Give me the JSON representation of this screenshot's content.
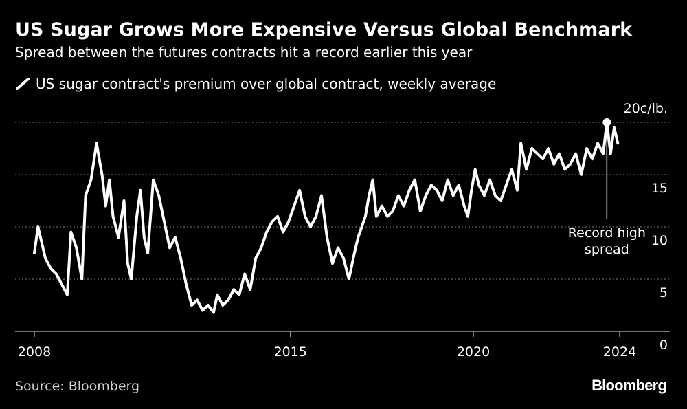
{
  "header": {
    "title": "US Sugar Grows More Expensive Versus Global Benchmark",
    "subtitle": "Spread between the futures contracts hit a record earlier this year"
  },
  "legend": {
    "label": "US sugar contract's premium over global contract, weekly average",
    "color": "#ffffff"
  },
  "footer": {
    "source": "Source: Bloomberg",
    "brand": "Bloomberg"
  },
  "colors": {
    "background": "#000000",
    "line": "#ffffff",
    "grid": "#666666",
    "axis": "#9a9a9a"
  },
  "chart_data": {
    "type": "line",
    "title": "US Sugar Grows More Expensive Versus Global Benchmark",
    "subtitle": "Spread between the futures contracts hit a record earlier this year",
    "ylabel": "c/lb.",
    "unit_label": "20c/lb.",
    "ylim": [
      0,
      20
    ],
    "xlim": [
      2008,
      2025.8
    ],
    "yticks": [
      {
        "value": 0,
        "label": "0"
      },
      {
        "value": 5,
        "label": "5"
      },
      {
        "value": 10,
        "label": "10"
      },
      {
        "value": 15,
        "label": "15"
      },
      {
        "value": 20,
        "label": "20c/lb."
      }
    ],
    "xticks": [
      {
        "value": 2008,
        "label": "2008"
      },
      {
        "value": 2015,
        "label": "2015"
      },
      {
        "value": 2020,
        "label": "2020"
      },
      {
        "value": 2024,
        "label": "2024"
      }
    ],
    "grid": true,
    "annotation": {
      "label_line1": "Record high",
      "label_line2": "spread",
      "x": 2023.65,
      "y": 20
    },
    "series": [
      {
        "name": "US sugar contract's premium over global contract, weekly average",
        "x": [
          2008.0,
          2008.1,
          2008.2,
          2008.3,
          2008.45,
          2008.6,
          2008.75,
          2008.9,
          2009.0,
          2009.15,
          2009.3,
          2009.4,
          2009.55,
          2009.7,
          2009.85,
          2009.95,
          2010.05,
          2010.15,
          2010.3,
          2010.45,
          2010.55,
          2010.65,
          2010.8,
          2010.9,
          2011.0,
          2011.1,
          2011.25,
          2011.4,
          2011.55,
          2011.7,
          2011.85,
          2012.0,
          2012.15,
          2012.3,
          2012.45,
          2012.6,
          2012.75,
          2012.9,
          2013.0,
          2013.15,
          2013.3,
          2013.45,
          2013.6,
          2013.75,
          2013.9,
          2014.05,
          2014.2,
          2014.35,
          2014.5,
          2014.65,
          2014.8,
          2014.95,
          2015.1,
          2015.25,
          2015.4,
          2015.55,
          2015.7,
          2015.85,
          2016.0,
          2016.15,
          2016.3,
          2016.45,
          2016.6,
          2016.75,
          2016.85,
          2016.95,
          2017.05,
          2017.15,
          2017.25,
          2017.35,
          2017.5,
          2017.65,
          2017.8,
          2017.95,
          2018.1,
          2018.25,
          2018.4,
          2018.55,
          2018.7,
          2018.85,
          2019.0,
          2019.15,
          2019.3,
          2019.45,
          2019.6,
          2019.75,
          2019.85,
          2019.95,
          2020.05,
          2020.15,
          2020.3,
          2020.45,
          2020.6,
          2020.75,
          2020.9,
          2021.05,
          2021.2,
          2021.3,
          2021.45,
          2021.6,
          2021.75,
          2021.9,
          2022.05,
          2022.2,
          2022.35,
          2022.5,
          2022.65,
          2022.8,
          2022.95,
          2023.1,
          2023.25,
          2023.4,
          2023.55,
          2023.65,
          2023.75,
          2023.85,
          2023.95
        ],
        "values": [
          7.5,
          10.0,
          8.5,
          7.0,
          6.0,
          5.5,
          4.5,
          3.5,
          9.5,
          8.0,
          5.0,
          13.0,
          14.5,
          18.0,
          15.0,
          12.0,
          14.5,
          11.0,
          9.0,
          12.5,
          6.5,
          5.0,
          11.0,
          13.5,
          9.0,
          7.5,
          14.5,
          13.0,
          10.5,
          8.0,
          9.0,
          7.0,
          4.5,
          2.5,
          3.0,
          2.0,
          2.5,
          1.8,
          3.5,
          2.5,
          3.0,
          4.0,
          3.5,
          5.5,
          4.0,
          7.0,
          8.0,
          9.5,
          10.5,
          11.0,
          9.5,
          10.5,
          12.0,
          13.5,
          11.0,
          10.0,
          11.0,
          13.0,
          9.0,
          6.5,
          8.0,
          7.0,
          5.0,
          7.5,
          9.0,
          10.0,
          11.0,
          13.0,
          14.5,
          11.0,
          12.0,
          11.0,
          11.5,
          13.0,
          12.0,
          13.5,
          14.5,
          11.5,
          13.0,
          14.0,
          13.5,
          12.5,
          14.5,
          13.0,
          14.0,
          12.0,
          11.0,
          13.5,
          15.5,
          14.0,
          13.0,
          14.5,
          13.0,
          12.5,
          14.0,
          15.5,
          13.5,
          18.0,
          15.5,
          17.5,
          17.0,
          16.5,
          17.5,
          16.0,
          17.0,
          15.5,
          16.0,
          17.0,
          15.0,
          17.5,
          16.5,
          18.0,
          17.0,
          20.0,
          17.0,
          19.5,
          18.0
        ]
      }
    ]
  }
}
